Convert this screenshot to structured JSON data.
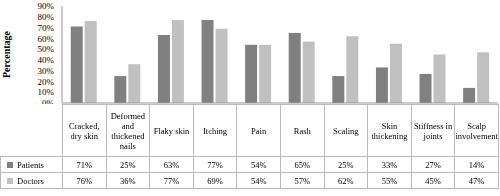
{
  "chart_data": {
    "type": "bar",
    "y_label": "Percentage",
    "categories": [
      "Cracked, dry skin",
      "Deformed and thickened nails",
      "Flaky skin",
      "Itching",
      "Pain",
      "Rash",
      "Scaling",
      "Skin thickening",
      "Stiffness in joints",
      "Scalp involvement"
    ],
    "series": [
      {
        "name": "Patients",
        "color": "#808080",
        "values": [
          71,
          25,
          63,
          77,
          54,
          65,
          25,
          33,
          27,
          14
        ],
        "value_labels": [
          "71%",
          "25%",
          "63%",
          "77%",
          "54%",
          "65%",
          "25%",
          "33%",
          "27%",
          "14%"
        ]
      },
      {
        "name": "Doctors",
        "color": "#c0c0c0",
        "values": [
          76,
          36,
          77,
          69,
          54,
          57,
          62,
          55,
          45,
          47
        ],
        "value_labels": [
          "76%",
          "36%",
          "77%",
          "69%",
          "54%",
          "57%",
          "62%",
          "55%",
          "45%",
          "47%"
        ]
      }
    ],
    "ylim": [
      0,
      90
    ],
    "yticks": [
      {
        "value": 0,
        "label": "0%"
      },
      {
        "value": 10,
        "label": "10%"
      },
      {
        "value": 20,
        "label": "20%"
      },
      {
        "value": 30,
        "label": "30%"
      },
      {
        "value": 40,
        "label": "40%"
      },
      {
        "value": 50,
        "label": "50%"
      },
      {
        "value": 60,
        "label": "60%"
      },
      {
        "value": 70,
        "label": "70%"
      },
      {
        "value": 80,
        "label": "80%"
      },
      {
        "value": 90,
        "label": "90%"
      }
    ],
    "grid": false
  }
}
